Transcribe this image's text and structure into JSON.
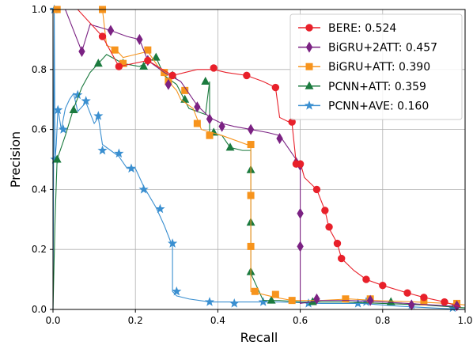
{
  "chart_data": {
    "type": "line",
    "xlabel": "Recall",
    "ylabel": "Precision",
    "xlim": [
      0,
      1
    ],
    "ylim": [
      0,
      1
    ],
    "xticks": [
      "0.0",
      "0.2",
      "0.4",
      "0.6",
      "0.8",
      "1.0"
    ],
    "yticks": [
      "0.0",
      "0.2",
      "0.4",
      "0.6",
      "0.8",
      "1.0"
    ],
    "grid": true,
    "legend_position": "top-right",
    "series": [
      {
        "name": "BERE: 0.524",
        "color": "#e8202a",
        "marker": "circle",
        "points": [
          [
            0.002,
            1.0
          ],
          [
            0.06,
            1.0
          ],
          [
            0.12,
            0.91
          ],
          [
            0.16,
            0.81
          ],
          [
            0.23,
            0.83
          ],
          [
            0.29,
            0.78
          ],
          [
            0.35,
            0.8
          ],
          [
            0.39,
            0.8
          ],
          [
            0.42,
            0.79
          ],
          [
            0.47,
            0.78
          ],
          [
            0.51,
            0.76
          ],
          [
            0.54,
            0.74
          ],
          [
            0.55,
            0.64
          ],
          [
            0.58,
            0.62
          ],
          [
            0.59,
            0.49
          ],
          [
            0.6,
            0.49
          ],
          [
            0.61,
            0.44
          ],
          [
            0.64,
            0.4
          ],
          [
            0.66,
            0.33
          ],
          [
            0.67,
            0.27
          ],
          [
            0.69,
            0.22
          ],
          [
            0.7,
            0.17
          ],
          [
            0.73,
            0.13
          ],
          [
            0.76,
            0.1
          ],
          [
            0.8,
            0.08
          ],
          [
            0.86,
            0.055
          ],
          [
            0.9,
            0.04
          ],
          [
            0.95,
            0.025
          ],
          [
            0.99,
            0.008
          ]
        ],
        "marker_points": [
          [
            0.12,
            0.91
          ],
          [
            0.16,
            0.81
          ],
          [
            0.23,
            0.83
          ],
          [
            0.29,
            0.78
          ],
          [
            0.39,
            0.805
          ],
          [
            0.47,
            0.78
          ],
          [
            0.54,
            0.74
          ],
          [
            0.58,
            0.625
          ],
          [
            0.59,
            0.485
          ],
          [
            0.6,
            0.485
          ],
          [
            0.64,
            0.4
          ],
          [
            0.66,
            0.33
          ],
          [
            0.67,
            0.275
          ],
          [
            0.69,
            0.22
          ],
          [
            0.7,
            0.17
          ],
          [
            0.76,
            0.1
          ],
          [
            0.8,
            0.08
          ],
          [
            0.86,
            0.055
          ],
          [
            0.9,
            0.04
          ],
          [
            0.95,
            0.025
          ]
        ]
      },
      {
        "name": "BiGRU+2ATT: 0.457",
        "color": "#7b2283",
        "marker": "diamond",
        "points": [
          [
            0.002,
            1.0
          ],
          [
            0.03,
            1.0
          ],
          [
            0.07,
            0.86
          ],
          [
            0.09,
            0.95
          ],
          [
            0.14,
            0.93
          ],
          [
            0.18,
            0.91
          ],
          [
            0.21,
            0.9
          ],
          [
            0.23,
            0.83
          ],
          [
            0.27,
            0.79
          ],
          [
            0.31,
            0.76
          ],
          [
            0.35,
            0.68
          ],
          [
            0.38,
            0.64
          ],
          [
            0.41,
            0.62
          ],
          [
            0.44,
            0.61
          ],
          [
            0.48,
            0.6
          ],
          [
            0.52,
            0.59
          ],
          [
            0.55,
            0.58
          ],
          [
            0.57,
            0.54
          ],
          [
            0.59,
            0.5
          ],
          [
            0.6,
            0.48
          ],
          [
            0.6,
            0.32
          ],
          [
            0.6,
            0.21
          ],
          [
            0.6,
            0.02
          ],
          [
            0.65,
            0.03
          ],
          [
            0.72,
            0.03
          ],
          [
            0.8,
            0.025
          ],
          [
            0.86,
            0.02
          ],
          [
            0.92,
            0.015
          ],
          [
            0.98,
            0.01
          ]
        ],
        "marker_points": [
          [
            0.07,
            0.86
          ],
          [
            0.14,
            0.93
          ],
          [
            0.21,
            0.9
          ],
          [
            0.23,
            0.83
          ],
          [
            0.28,
            0.75
          ],
          [
            0.35,
            0.675
          ],
          [
            0.38,
            0.635
          ],
          [
            0.41,
            0.61
          ],
          [
            0.48,
            0.6
          ],
          [
            0.55,
            0.57
          ],
          [
            0.59,
            0.49
          ],
          [
            0.6,
            0.48
          ],
          [
            0.6,
            0.32
          ],
          [
            0.6,
            0.21
          ],
          [
            0.64,
            0.035
          ],
          [
            0.77,
            0.03
          ],
          [
            0.87,
            0.015
          ],
          [
            0.98,
            0.012
          ]
        ]
      },
      {
        "name": "BiGRU+ATT: 0.390",
        "color": "#f7941d",
        "marker": "square",
        "points": [
          [
            0.002,
            1.0
          ],
          [
            0.1,
            1.0
          ],
          [
            0.12,
            1.0
          ],
          [
            0.13,
            0.88
          ],
          [
            0.15,
            0.87
          ],
          [
            0.17,
            0.84
          ],
          [
            0.2,
            0.85
          ],
          [
            0.23,
            0.86
          ],
          [
            0.26,
            0.8
          ],
          [
            0.28,
            0.76
          ],
          [
            0.3,
            0.73
          ],
          [
            0.31,
            0.7
          ],
          [
            0.34,
            0.67
          ],
          [
            0.36,
            0.6
          ],
          [
            0.41,
            0.58
          ],
          [
            0.47,
            0.55
          ],
          [
            0.48,
            0.55
          ],
          [
            0.48,
            0.38
          ],
          [
            0.48,
            0.21
          ],
          [
            0.48,
            0.06
          ],
          [
            0.51,
            0.05
          ],
          [
            0.54,
            0.04
          ],
          [
            0.58,
            0.03
          ],
          [
            0.65,
            0.03
          ],
          [
            0.72,
            0.035
          ],
          [
            0.78,
            0.03
          ],
          [
            0.88,
            0.025
          ],
          [
            0.96,
            0.02
          ],
          [
            1.0,
            0.015
          ]
        ],
        "marker_points": [
          [
            0.01,
            1.0
          ],
          [
            0.12,
            1.0
          ],
          [
            0.15,
            0.865
          ],
          [
            0.17,
            0.82
          ],
          [
            0.23,
            0.865
          ],
          [
            0.27,
            0.79
          ],
          [
            0.28,
            0.76
          ],
          [
            0.32,
            0.73
          ],
          [
            0.35,
            0.62
          ],
          [
            0.38,
            0.58
          ],
          [
            0.48,
            0.55
          ],
          [
            0.48,
            0.38
          ],
          [
            0.48,
            0.21
          ],
          [
            0.49,
            0.06
          ],
          [
            0.54,
            0.05
          ],
          [
            0.58,
            0.03
          ],
          [
            0.71,
            0.035
          ],
          [
            0.77,
            0.035
          ],
          [
            0.9,
            0.025
          ],
          [
            0.98,
            0.02
          ]
        ]
      },
      {
        "name": "PCNN+ATT: 0.359",
        "color": "#1b7a3e",
        "marker": "triangle",
        "points": [
          [
            0.0,
            0.0
          ],
          [
            0.005,
            0.3
          ],
          [
            0.01,
            0.5
          ],
          [
            0.03,
            0.58
          ],
          [
            0.05,
            0.67
          ],
          [
            0.07,
            0.74
          ],
          [
            0.09,
            0.79
          ],
          [
            0.11,
            0.82
          ],
          [
            0.13,
            0.85
          ],
          [
            0.17,
            0.82
          ],
          [
            0.21,
            0.81
          ],
          [
            0.25,
            0.84
          ],
          [
            0.27,
            0.78
          ],
          [
            0.3,
            0.75
          ],
          [
            0.33,
            0.67
          ],
          [
            0.37,
            0.65
          ],
          [
            0.38,
            0.76
          ],
          [
            0.38,
            0.59
          ],
          [
            0.41,
            0.58
          ],
          [
            0.43,
            0.54
          ],
          [
            0.46,
            0.53
          ],
          [
            0.48,
            0.53
          ],
          [
            0.48,
            0.46
          ],
          [
            0.48,
            0.29
          ],
          [
            0.48,
            0.2
          ],
          [
            0.48,
            0.12
          ],
          [
            0.51,
            0.03
          ],
          [
            0.55,
            0.03
          ],
          [
            0.6,
            0.025
          ],
          [
            0.7,
            0.025
          ],
          [
            0.8,
            0.02
          ],
          [
            0.9,
            0.015
          ],
          [
            1.0,
            0.005
          ]
        ],
        "marker_points": [
          [
            0.01,
            0.5
          ],
          [
            0.05,
            0.665
          ],
          [
            0.11,
            0.82
          ],
          [
            0.17,
            0.82
          ],
          [
            0.22,
            0.81
          ],
          [
            0.25,
            0.84
          ],
          [
            0.29,
            0.78
          ],
          [
            0.32,
            0.7
          ],
          [
            0.37,
            0.76
          ],
          [
            0.39,
            0.59
          ],
          [
            0.43,
            0.54
          ],
          [
            0.48,
            0.465
          ],
          [
            0.48,
            0.29
          ],
          [
            0.48,
            0.125
          ],
          [
            0.53,
            0.03
          ],
          [
            0.63,
            0.025
          ],
          [
            0.82,
            0.025
          ]
        ]
      },
      {
        "name": "PCNN+AVE: 0.160",
        "color": "#3a8fd0",
        "marker": "star",
        "points": [
          [
            0.0,
            0.0
          ],
          [
            0.003,
            1.0
          ],
          [
            0.005,
            0.5
          ],
          [
            0.008,
            0.55
          ],
          [
            0.012,
            0.67
          ],
          [
            0.02,
            0.6
          ],
          [
            0.03,
            0.67
          ],
          [
            0.04,
            0.7
          ],
          [
            0.05,
            0.72
          ],
          [
            0.06,
            0.66
          ],
          [
            0.08,
            0.69
          ],
          [
            0.1,
            0.62
          ],
          [
            0.11,
            0.64
          ],
          [
            0.12,
            0.55
          ],
          [
            0.14,
            0.53
          ],
          [
            0.16,
            0.51
          ],
          [
            0.18,
            0.47
          ],
          [
            0.2,
            0.47
          ],
          [
            0.22,
            0.41
          ],
          [
            0.25,
            0.34
          ],
          [
            0.27,
            0.28
          ],
          [
            0.29,
            0.21
          ],
          [
            0.29,
            0.06
          ],
          [
            0.3,
            0.045
          ],
          [
            0.33,
            0.035
          ],
          [
            0.38,
            0.025
          ],
          [
            0.45,
            0.025
          ],
          [
            0.55,
            0.025
          ],
          [
            0.65,
            0.02
          ],
          [
            0.75,
            0.02
          ],
          [
            0.85,
            0.01
          ],
          [
            0.92,
            0.005
          ],
          [
            1.0,
            0.0
          ]
        ],
        "marker_points": [
          [
            0.003,
            1.0
          ],
          [
            0.005,
            0.5
          ],
          [
            0.012,
            0.665
          ],
          [
            0.025,
            0.6
          ],
          [
            0.06,
            0.715
          ],
          [
            0.08,
            0.695
          ],
          [
            0.11,
            0.645
          ],
          [
            0.12,
            0.53
          ],
          [
            0.16,
            0.52
          ],
          [
            0.19,
            0.47
          ],
          [
            0.22,
            0.4
          ],
          [
            0.26,
            0.335
          ],
          [
            0.29,
            0.22
          ],
          [
            0.3,
            0.06
          ],
          [
            0.38,
            0.025
          ],
          [
            0.44,
            0.02
          ],
          [
            0.51,
            0.025
          ],
          [
            0.62,
            0.02
          ],
          [
            0.74,
            0.02
          ],
          [
            0.76,
            0.025
          ],
          [
            0.87,
            0.015
          ],
          [
            0.97,
            0.005
          ]
        ]
      }
    ]
  }
}
